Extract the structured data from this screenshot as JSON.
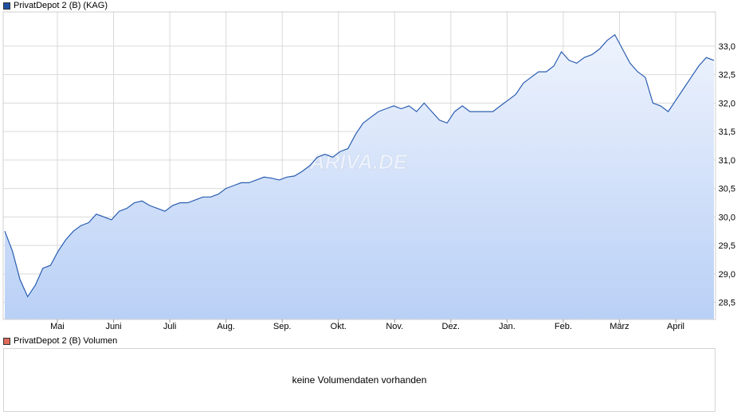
{
  "colors": {
    "line": "#2a5db0",
    "fill_top": "#eef3fd",
    "fill_bottom": "#b9d0f6",
    "grid": "#d9d9d9",
    "price_swatch": "#1f4fa3",
    "volume_swatch": "#e06b5c"
  },
  "legend": {
    "price_label": "PrivatDepot 2 (B) (KAG)",
    "volume_label": "PrivatDepot 2 (B) Volumen"
  },
  "watermark": "ARIVA.DE",
  "volume": {
    "message": "keine Volumendaten vorhanden"
  },
  "chart_data": {
    "type": "area",
    "title": "",
    "xlabel": "",
    "ylabel": "",
    "ylim": [
      28.2,
      33.6
    ],
    "y_ticks": [
      28.5,
      29.0,
      29.5,
      30.0,
      30.5,
      31.0,
      31.5,
      32.0,
      32.5,
      33.0
    ],
    "y_tick_labels": [
      "28,5",
      "29,0",
      "29,5",
      "30,0",
      "30,5",
      "31,0",
      "31,5",
      "32,0",
      "32,5",
      "33,0"
    ],
    "x_tick_labels": [
      "Mai",
      "Juni",
      "Juli",
      "Aug.",
      "Sep.",
      "Okt.",
      "Nov.",
      "Dez.",
      "Jan.",
      "Feb.",
      "März",
      "April"
    ],
    "grid": true,
    "series": [
      {
        "values": [
          29.75,
          29.4,
          28.9,
          28.6,
          28.8,
          29.1,
          29.15,
          29.4,
          29.6,
          29.75,
          29.85,
          29.9,
          30.05,
          30.0,
          29.95,
          30.1,
          30.15,
          30.25,
          30.28,
          30.2,
          30.15,
          30.1,
          30.2,
          30.25,
          30.25,
          30.3,
          30.35,
          30.35,
          30.4,
          30.5,
          30.55,
          30.6,
          30.6,
          30.65,
          30.7,
          30.68,
          30.65,
          30.7,
          30.72,
          30.8,
          30.9,
          31.05,
          31.1,
          31.05,
          31.15,
          31.2,
          31.45,
          31.65,
          31.75,
          31.85,
          31.9,
          31.95,
          31.9,
          31.95,
          31.85,
          32.0,
          31.85,
          31.7,
          31.65,
          31.85,
          31.95,
          31.85,
          31.85,
          31.85,
          31.85,
          31.95,
          32.05,
          32.15,
          32.35,
          32.45,
          32.55,
          32.55,
          32.65,
          32.9,
          32.75,
          32.7,
          32.8,
          32.85,
          32.95,
          33.1,
          33.2,
          32.95,
          32.7,
          32.55,
          32.45,
          32.0,
          31.95,
          31.85,
          32.05,
          32.25,
          32.45,
          32.65,
          32.8,
          32.75
        ]
      }
    ]
  }
}
